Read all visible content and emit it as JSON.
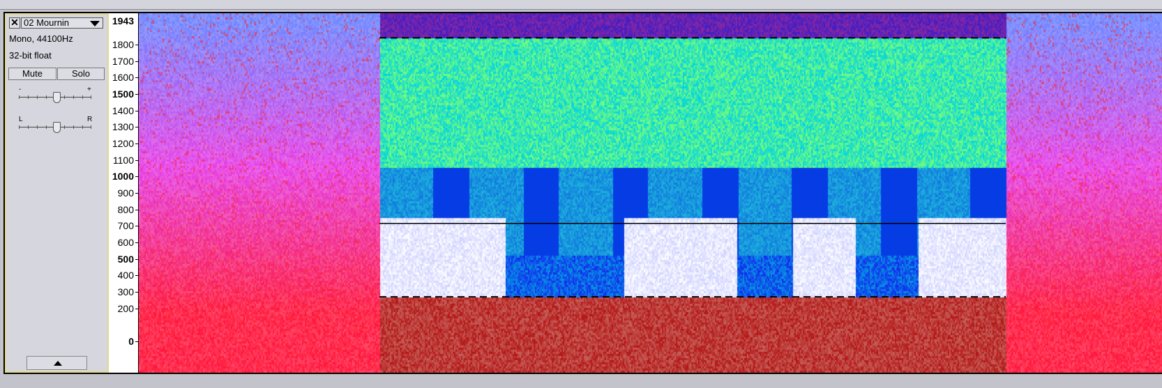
{
  "track": {
    "name": "02 Mournin",
    "format": "Mono, 44100Hz",
    "bit_depth": "32-bit float",
    "mute_label": "Mute",
    "solo_label": "Solo",
    "gain_minus": "-",
    "gain_plus": "+",
    "pan_left": "L",
    "pan_right": "R"
  },
  "ruler": {
    "max_label": "1943",
    "labels": [
      {
        "text": "1800",
        "value": 1800,
        "bold": false
      },
      {
        "text": "1700",
        "value": 1700,
        "bold": false
      },
      {
        "text": "1600",
        "value": 1600,
        "bold": false
      },
      {
        "text": "1500",
        "value": 1500,
        "bold": true
      },
      {
        "text": "1400",
        "value": 1400,
        "bold": false
      },
      {
        "text": "1300",
        "value": 1300,
        "bold": false
      },
      {
        "text": "1200",
        "value": 1200,
        "bold": false
      },
      {
        "text": "1100",
        "value": 1100,
        "bold": false
      },
      {
        "text": "1000",
        "value": 1000,
        "bold": true
      },
      {
        "text": "900",
        "value": 900,
        "bold": false
      },
      {
        "text": "800",
        "value": 800,
        "bold": false
      },
      {
        "text": "700",
        "value": 700,
        "bold": false
      },
      {
        "text": "600",
        "value": 600,
        "bold": false
      },
      {
        "text": "500",
        "value": 500,
        "bold": true
      },
      {
        "text": "400",
        "value": 400,
        "bold": false
      },
      {
        "text": "300",
        "value": 300,
        "bold": false
      },
      {
        "text": "200",
        "value": 200,
        "bold": false
      },
      {
        "text": "0",
        "value": 0,
        "bold": true
      }
    ]
  },
  "selection": {
    "low_hz": 270,
    "high_hz": 1840,
    "center_hz": 715
  },
  "colors": {
    "panel_border": "#e6d98a",
    "spectrum_low": "#ff2244",
    "spectrum_mid": "#ff33cc",
    "spectrum_high": "#9955ff",
    "selected_band": "#66ee88",
    "selected_deep": "#0022ee",
    "selected_floor": "#bb1111"
  }
}
